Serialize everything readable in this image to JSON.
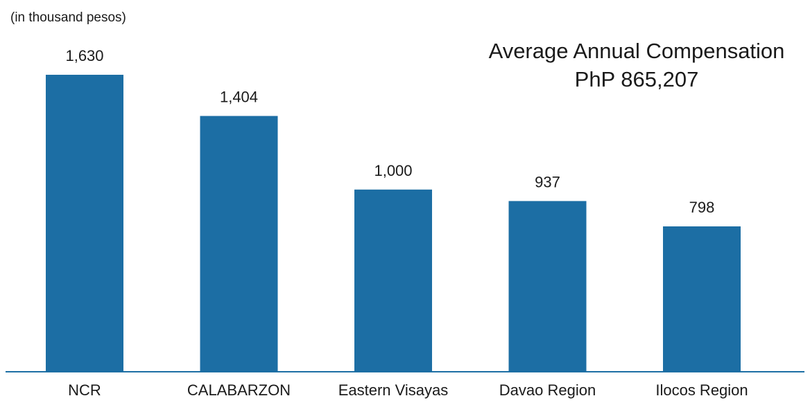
{
  "chart_data": {
    "type": "bar",
    "title": "",
    "xlabel": "",
    "ylabel": "",
    "unit_note": "(in thousand pesos)",
    "annotation": {
      "line1": "Average Annual Compensation",
      "line2": "PhP 865,207"
    },
    "categories": [
      "NCR",
      "CALABARZON",
      "Eastern Visayas",
      "Davao Region",
      "Ilocos Region"
    ],
    "values": [
      1630,
      1404,
      1000,
      937,
      798
    ],
    "value_labels": [
      "1,630",
      "1,404",
      "1,000",
      "937",
      "798"
    ],
    "ylim": [
      0,
      1630
    ],
    "grid": false,
    "legend": "none",
    "colors": {
      "bar": "#1C6EA4",
      "axis": "#1C6EA4",
      "text": "#1a1a1a"
    }
  }
}
